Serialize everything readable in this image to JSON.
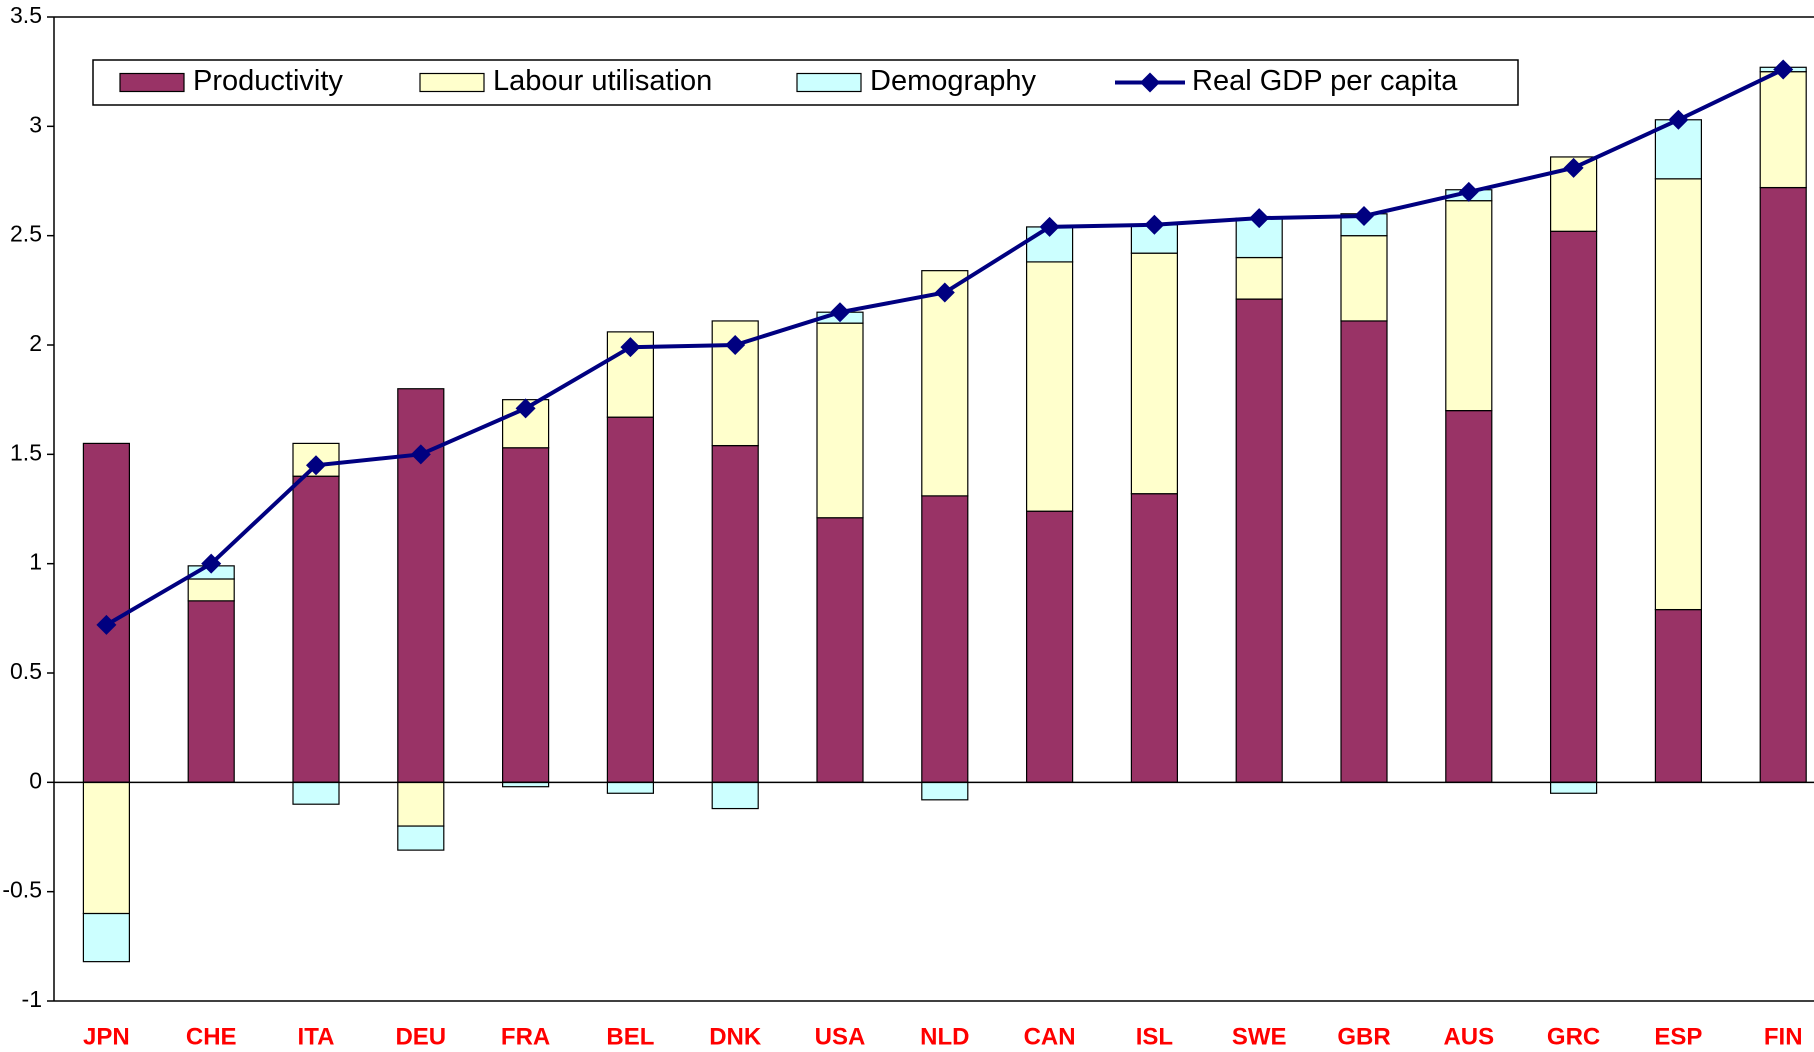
{
  "chart_data": {
    "type": "bar",
    "categories": [
      "JPN",
      "CHE",
      "ITA",
      "DEU",
      "FRA",
      "BEL",
      "DNK",
      "USA",
      "NLD",
      "CAN",
      "ISL",
      "SWE",
      "GBR",
      "AUS",
      "GRC",
      "ESP",
      "FIN"
    ],
    "series": [
      {
        "name": "Productivity",
        "color": "#993366",
        "values": [
          1.55,
          0.83,
          1.4,
          1.8,
          1.53,
          1.67,
          1.54,
          1.21,
          1.31,
          1.24,
          1.32,
          2.21,
          2.11,
          1.7,
          2.52,
          0.79,
          2.72
        ]
      },
      {
        "name": "Labour utilisation",
        "color": "#ffffcc",
        "values": [
          -0.6,
          0.1,
          0.15,
          -0.2,
          0.22,
          0.39,
          0.57,
          0.89,
          1.03,
          1.14,
          1.1,
          0.19,
          0.39,
          0.96,
          0.34,
          1.97,
          0.53
        ]
      },
      {
        "name": "Demography",
        "color": "#ccffff",
        "values": [
          -0.22,
          0.06,
          -0.1,
          -0.11,
          -0.02,
          -0.05,
          -0.12,
          0.05,
          -0.08,
          0.16,
          0.13,
          0.18,
          0.1,
          0.05,
          -0.05,
          0.27,
          0.02
        ]
      },
      {
        "name": "Real GDP per capita",
        "color": "#000080",
        "type": "line",
        "values": [
          0.72,
          1.0,
          1.45,
          1.5,
          1.71,
          1.99,
          2.0,
          2.15,
          2.24,
          2.54,
          2.55,
          2.58,
          2.59,
          2.7,
          2.81,
          3.03,
          3.26
        ]
      }
    ],
    "ylim": [
      -1,
      3.5
    ],
    "yticks": [
      -1,
      -0.5,
      0,
      0.5,
      1,
      1.5,
      2,
      2.5,
      3,
      3.5
    ],
    "category_label_color": "#ff0000"
  }
}
